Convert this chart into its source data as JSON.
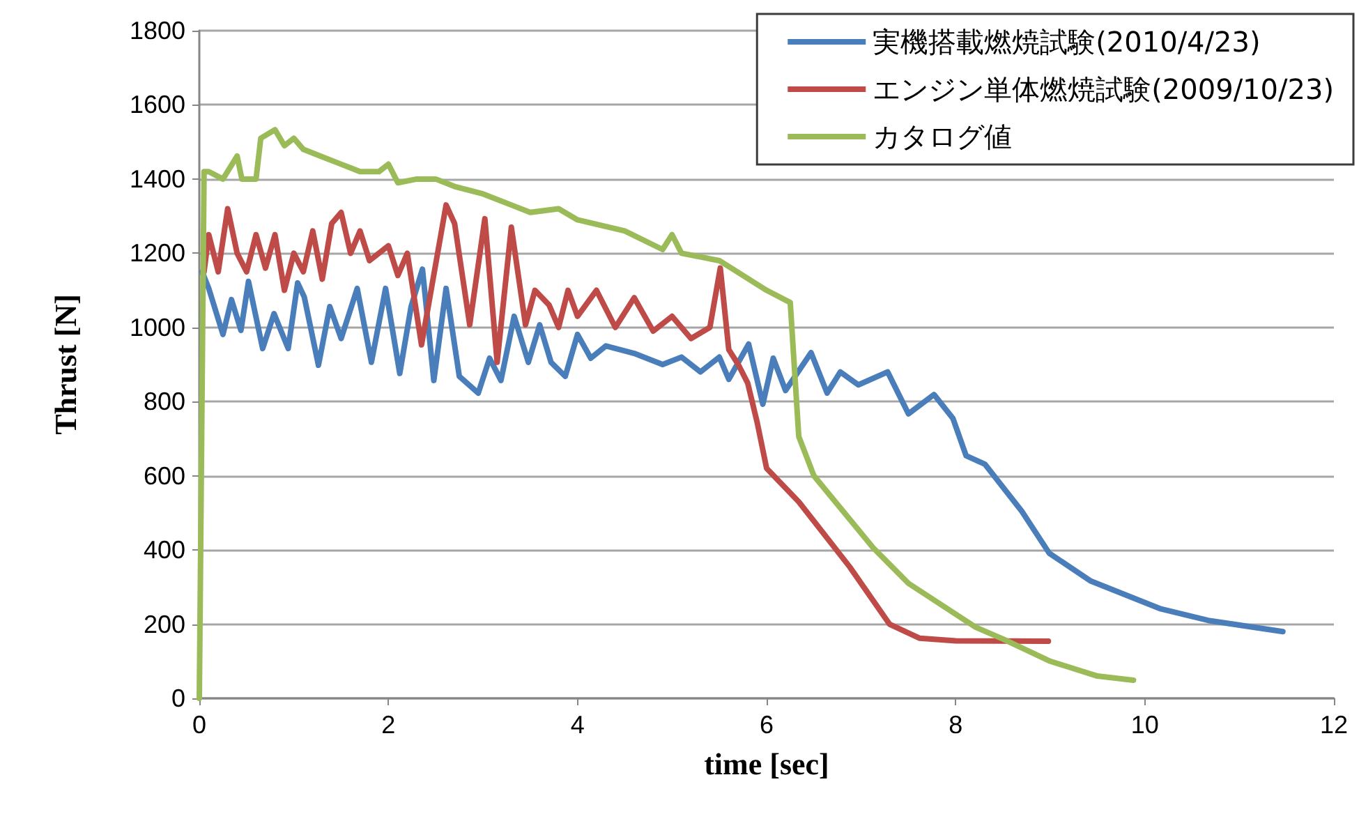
{
  "chart_data": {
    "type": "line",
    "xlabel": "time [sec]",
    "ylabel": "Thrust [N]",
    "xlim": [
      0,
      12
    ],
    "xticks": [
      0,
      2,
      4,
      6,
      8,
      10,
      12
    ],
    "ylim": [
      0,
      1800
    ],
    "yticks": [
      0,
      200,
      400,
      600,
      800,
      1000,
      1200,
      1400,
      1600,
      1800
    ],
    "grid": "y",
    "legend": "top right",
    "marker": "none",
    "line_style": "solid",
    "series": [
      {
        "name": "実機搭載燃焼試験(2010/4/23)",
        "color": "#4a7ebb",
        "x": [
          0.03,
          0.1,
          0.25,
          0.34,
          0.44,
          0.52,
          0.67,
          0.79,
          0.94,
          1.04,
          1.11,
          1.26,
          1.38,
          1.5,
          1.67,
          1.82,
          1.97,
          2.12,
          2.24,
          2.36,
          2.48,
          2.61,
          2.75,
          2.95,
          3.07,
          3.19,
          3.33,
          3.48,
          3.6,
          3.72,
          3.87,
          4.0,
          4.14,
          4.3,
          4.6,
          4.9,
          5.1,
          5.3,
          5.5,
          5.6,
          5.81,
          5.96,
          6.07,
          6.2,
          6.47,
          6.64,
          6.78,
          6.97,
          7.28,
          7.5,
          7.77,
          7.97,
          8.11,
          8.31,
          8.7,
          8.99,
          9.43,
          10.17,
          10.67,
          11.46
        ],
        "values": [
          1150,
          1105,
          981,
          1075,
          992,
          1124,
          943,
          1037,
          943,
          1120,
          1082,
          898,
          1056,
          970,
          1105,
          906,
          1105,
          876,
          1056,
          1157,
          857,
          1105,
          868,
          823,
          917,
          857,
          1030,
          906,
          1007,
          906,
          868,
          981,
          917,
          950,
          930,
          900,
          920,
          880,
          920,
          860,
          955,
          793,
          917,
          830,
          932,
          823,
          880,
          845,
          880,
          767,
          819,
          755,
          654,
          631,
          504,
          391,
          316,
          241,
          210,
          180
        ]
      },
      {
        "name": "エンジン単体燃焼試験(2009/10/23)",
        "color": "#be4b48",
        "x": [
          0.05,
          0.1,
          0.2,
          0.3,
          0.4,
          0.5,
          0.6,
          0.7,
          0.8,
          0.9,
          1.0,
          1.1,
          1.2,
          1.3,
          1.4,
          1.5,
          1.6,
          1.7,
          1.8,
          2.0,
          2.1,
          2.2,
          2.35,
          2.61,
          2.7,
          2.86,
          3.02,
          3.15,
          3.3,
          3.45,
          3.55,
          3.7,
          3.8,
          3.9,
          4.0,
          4.2,
          4.4,
          4.6,
          4.8,
          5.0,
          5.2,
          5.4,
          5.51,
          5.6,
          5.7,
          5.8,
          5.9,
          6.0,
          6.34,
          6.88,
          7.3,
          7.62,
          8.0,
          8.98
        ],
        "values": [
          1150,
          1250,
          1150,
          1320,
          1200,
          1150,
          1250,
          1160,
          1250,
          1100,
          1200,
          1150,
          1260,
          1130,
          1280,
          1310,
          1200,
          1260,
          1180,
          1220,
          1140,
          1200,
          953,
          1330,
          1280,
          1007,
          1293,
          906,
          1270,
          1007,
          1100,
          1060,
          1000,
          1100,
          1030,
          1100,
          1000,
          1080,
          990,
          1030,
          970,
          1000,
          1160,
          940,
          900,
          850,
          744,
          620,
          530,
          354,
          200,
          162,
          155,
          154
        ]
      },
      {
        "name": "カタログ値",
        "color": "#9bbb59",
        "x": [
          0,
          0.05,
          0.1,
          0.25,
          0.4,
          0.45,
          0.6,
          0.65,
          0.8,
          0.9,
          1.0,
          1.1,
          1.3,
          1.5,
          1.7,
          1.9,
          2.0,
          2.1,
          2.3,
          2.5,
          2.7,
          3.0,
          3.3,
          3.5,
          3.8,
          4.0,
          4.5,
          4.9,
          5.0,
          5.1,
          5.5,
          6.0,
          6.25,
          6.34,
          6.5,
          7.13,
          7.5,
          8.21,
          8.5,
          9.0,
          9.5,
          9.88
        ],
        "values": [
          0,
          1420,
          1420,
          1400,
          1462,
          1400,
          1400,
          1510,
          1533,
          1490,
          1510,
          1480,
          1460,
          1440,
          1420,
          1420,
          1440,
          1390,
          1400,
          1400,
          1380,
          1360,
          1330,
          1310,
          1320,
          1290,
          1260,
          1210,
          1250,
          1200,
          1180,
          1100,
          1067,
          706,
          600,
          405,
          310,
          192,
          160,
          100,
          60,
          49
        ]
      }
    ]
  }
}
